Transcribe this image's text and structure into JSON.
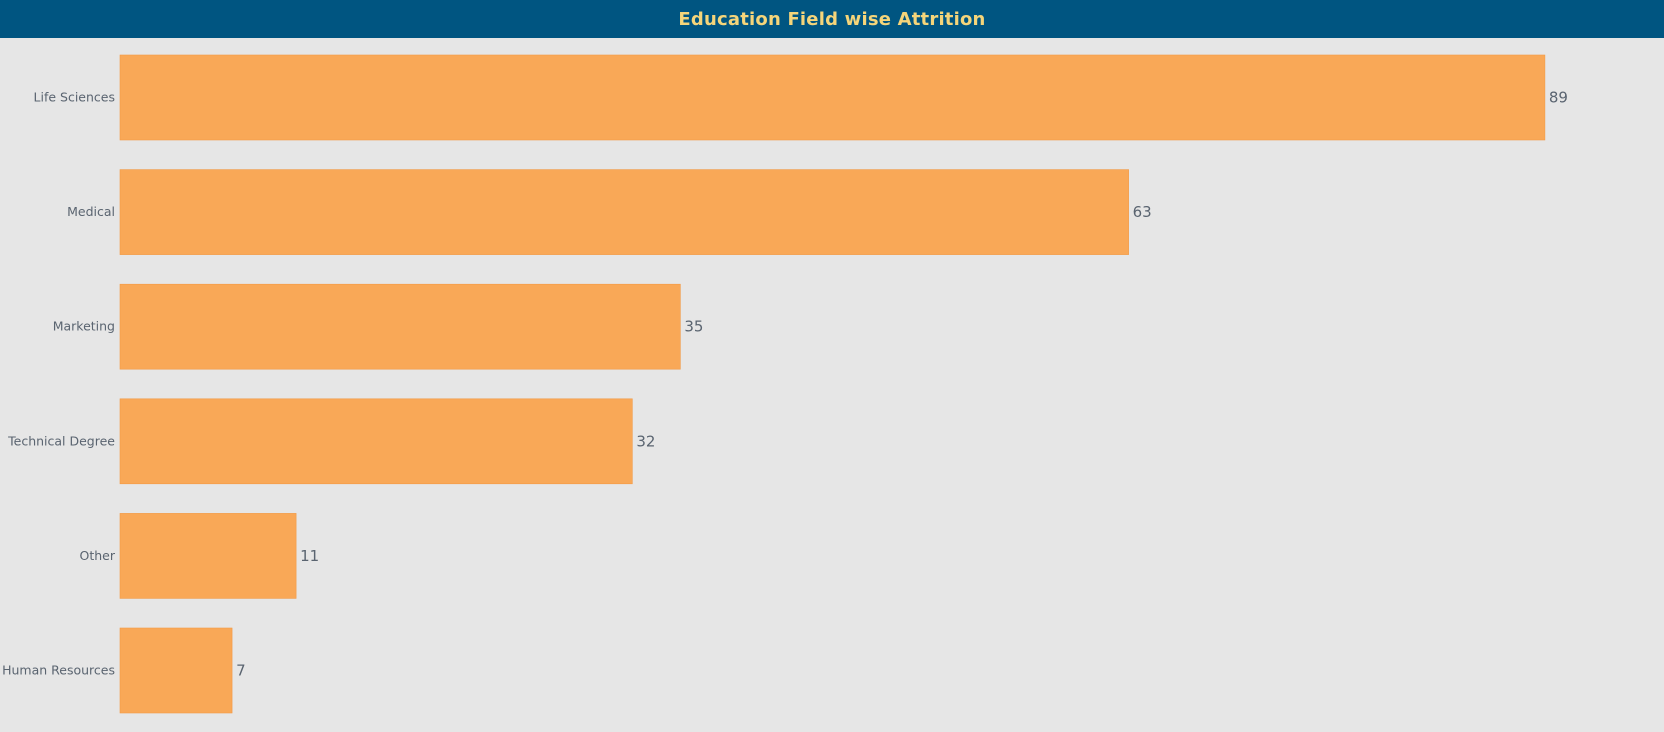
{
  "chart_data": {
    "type": "bar",
    "orientation": "horizontal",
    "title": "Education Field wise Attrition",
    "categories": [
      "Life Sciences",
      "Medical",
      "Marketing",
      "Technical Degree",
      "Other",
      "Human Resources"
    ],
    "values": [
      89,
      63,
      35,
      32,
      11,
      7
    ],
    "xlabel": "",
    "ylabel": "",
    "xlim": [
      0,
      100
    ],
    "grid": false,
    "legend": "none",
    "colors": {
      "bar": "#f9a857",
      "bar_edge": "#f29a45",
      "header_bg": "#005581",
      "title": "#f5d57a",
      "label": "#5a6470",
      "value_label": "#5a6470",
      "background": "#e6e6e6"
    }
  }
}
